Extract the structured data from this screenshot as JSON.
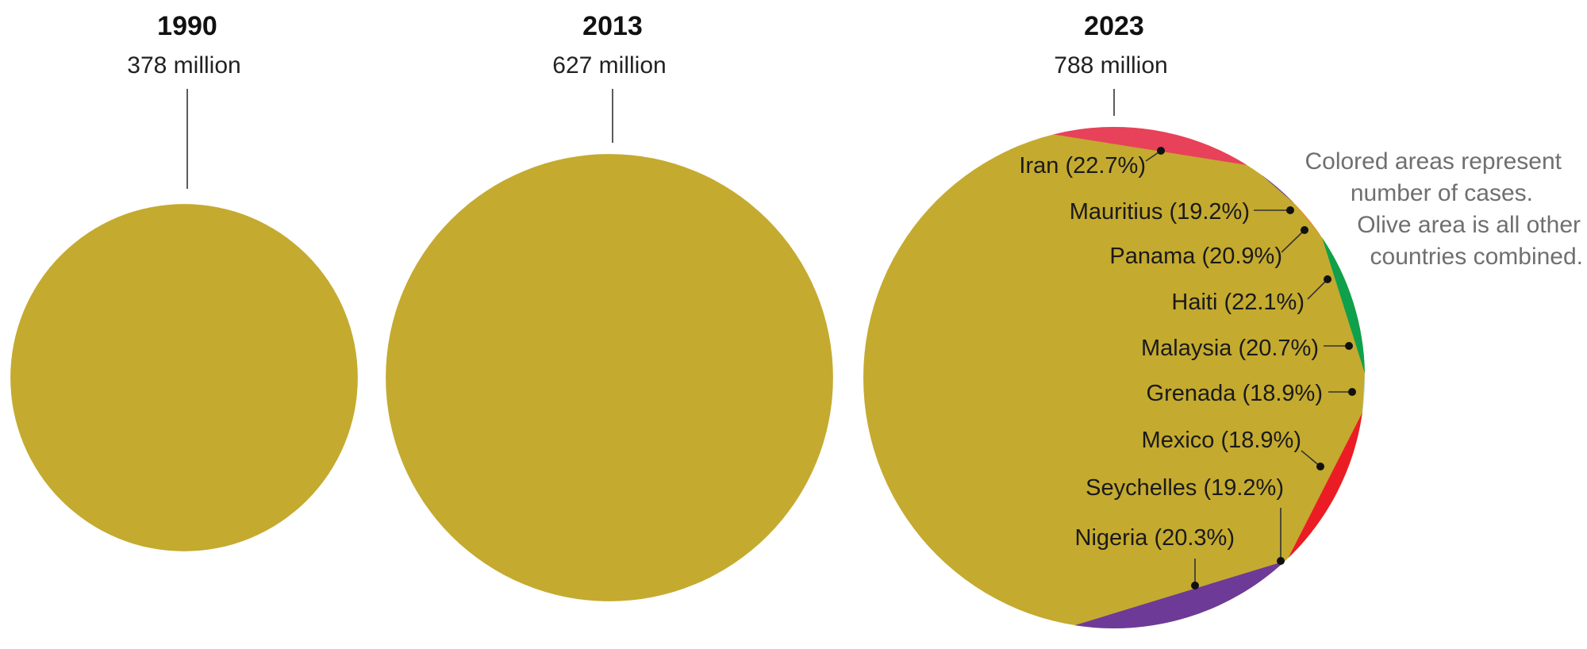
{
  "chart_data": {
    "type": "pie",
    "note": [
      "Colored areas represent",
      "number of cases.",
      "Olive area is all other",
      "countries combined."
    ],
    "colors": {
      "other": "#C4AA2F",
      "leader": "#333333"
    },
    "panels": [
      {
        "year": "1990",
        "total": "378 million",
        "total_value_millions": 378
      },
      {
        "year": "2013",
        "total": "627 million",
        "total_value_millions": 627
      },
      {
        "year": "2023",
        "total": "788 million",
        "total_value_millions": 788,
        "other_label": "all other countries combined",
        "slices": [
          {
            "country": "Iran",
            "label": "Iran (22.7%)",
            "color": "#E8415A",
            "share_deg": [
              -104,
              -58
            ]
          },
          {
            "country": "Mauritius",
            "label": "Mauritius (19.2%)",
            "color": "#F7E3A0",
            "share_deg": [
              -58,
              -54
            ]
          },
          {
            "country": "Panama",
            "label": "Panama (20.9%)",
            "color": "#6A3C9A",
            "share_deg": [
              -54,
              -44
            ]
          },
          {
            "country": "Haiti",
            "label": "Haiti (22.1%)",
            "color": "#F0812A",
            "share_deg": [
              -44,
              -34
            ]
          },
          {
            "country": "Malaysia",
            "label": "Malaysia (20.7%)",
            "color": "#0FA04B",
            "share_deg": [
              -34,
              -1
            ]
          },
          {
            "country": "Grenada",
            "label": "Grenada (18.9%)",
            "color": "#B8E4E0",
            "share_deg": [
              -1,
              8
            ]
          },
          {
            "country": "Mexico",
            "label": "Mexico (18.9%)",
            "color": "#EC1C24",
            "share_deg": [
              8,
              46
            ]
          },
          {
            "country": "Seychelles",
            "label": "Seychelles (19.2%)",
            "color": "#EC1C24",
            "share_deg": [
              46,
              47
            ]
          },
          {
            "country": "Nigeria",
            "label": "Nigeria (20.3%)",
            "color": "#6E3A97",
            "share_deg": [
              47,
              99
            ]
          }
        ]
      }
    ]
  }
}
